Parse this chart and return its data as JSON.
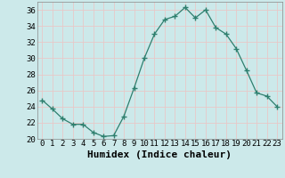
{
  "x": [
    0,
    1,
    2,
    3,
    4,
    5,
    6,
    7,
    8,
    9,
    10,
    11,
    12,
    13,
    14,
    15,
    16,
    17,
    18,
    19,
    20,
    21,
    22,
    23
  ],
  "y": [
    24.8,
    23.7,
    22.5,
    21.8,
    21.8,
    20.8,
    20.3,
    20.4,
    22.8,
    26.3,
    30.0,
    33.0,
    34.8,
    35.2,
    36.3,
    35.0,
    36.0,
    33.8,
    33.0,
    31.2,
    28.5,
    25.7,
    25.3,
    24.0
  ],
  "line_color": "#2e7f6e",
  "marker": "P",
  "marker_size": 2.5,
  "bg_color": "#cce9ea",
  "grid_color": "#e8c8c8",
  "xlabel": "Humidex (Indice chaleur)",
  "xlim": [
    -0.5,
    23.5
  ],
  "ylim": [
    20,
    37
  ],
  "yticks": [
    20,
    22,
    24,
    26,
    28,
    30,
    32,
    34,
    36
  ],
  "xticks": [
    0,
    1,
    2,
    3,
    4,
    5,
    6,
    7,
    8,
    9,
    10,
    11,
    12,
    13,
    14,
    15,
    16,
    17,
    18,
    19,
    20,
    21,
    22,
    23
  ],
  "tick_fontsize": 6.5,
  "label_fontsize": 8
}
